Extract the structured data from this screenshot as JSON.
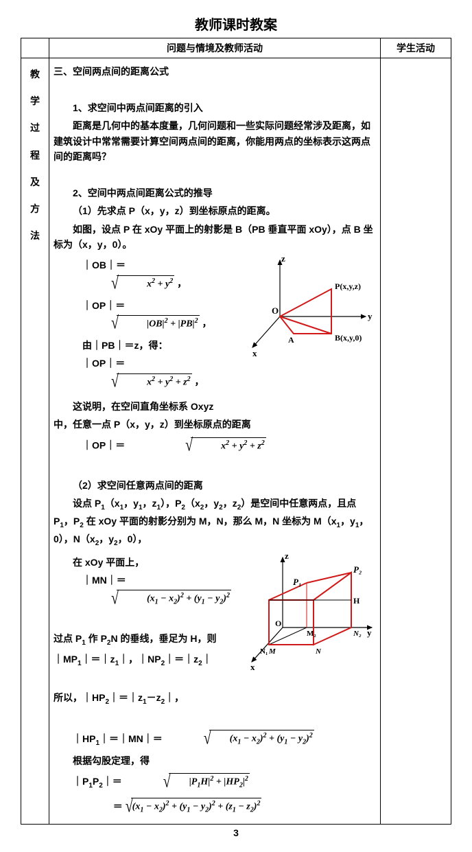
{
  "title": "教师课时教案",
  "header_center": "问题与情境及教师活动",
  "header_right": "学生活动",
  "side_label": "教学过程及方法",
  "page_number": "3",
  "s3_title": "三、空间两点间的距离公式",
  "s3_1_title": "1、求空间中两点间距离的引入",
  "s3_1_body": "距离是几何中的基本度量，几何问题和一些实际问题经常涉及距离，如建筑设计中常常需要计算空间两点间的距离，你能用两点的坐标表示这两点间的距离吗？",
  "s3_2_title": "2、空间中两点间距离公式的推导",
  "s3_2_1": "（1）先求点 P（x，y，z）到坐标原点的距离。",
  "s3_2_1_body": "如图，设点 P 在 xOy 平面上的射影是 B（PB 垂直平面 xOy），点 B 坐标为（x，y，0）。",
  "ob_label": "｜OB｜＝",
  "ob_expr": "x<sup>2</sup> + y<sup>2</sup>",
  "op_label1": "｜OP｜＝",
  "op_expr1": "|OB|<sup>2</sup> + |PB|<sup>2</sup>",
  "pb_line": "由｜PB｜＝z，得：",
  "op_label2": "｜OP｜＝",
  "op_expr2": "x<sup>2</sup> + y<sup>2</sup> + z<sup>2</sup>",
  "explain1a": "这说明，在空间直角坐标系 Oxyz",
  "explain1b": "中，任意一点 P（x，y，z）到坐标原点的距离",
  "op_label3": "｜OP｜＝",
  "op_expr3": "x<sup>2</sup> + y<sup>2</sup> + z<sup>2</sup>",
  "s3_2_2": "（2）求空间任意两点间的距离",
  "s3_2_2_body1": "设点 P<sub>1</sub>（x<sub>1</sub>，y<sub>1</sub>，z<sub>1</sub>），P<sub>2</sub>（x<sub>2</sub>，y<sub>2</sub>，z<sub>2</sub>）是空间中任意两点，且点 P<sub>1</sub>，P<sub>2</sub> 在 xOy 平面的射影分别为 M，N，那么 M，N 坐标为 M（x<sub>1</sub>，y<sub>1</sub>，0），N（x<sub>2</sub>，y<sub>2</sub>，0），",
  "s3_2_2_body2": "在 xOy 平面上，",
  "mn_label": "｜MN｜＝",
  "mn_expr": "(x<sub>1</sub> − x<sub>2</sub>)<sup>2</sup> + (y<sub>1</sub> − y<sub>2</sub>)<sup>2</sup>",
  "perp_line1": "过点 P<sub>1</sub> 作 P<sub>2</sub>N 的垂线，垂足为 H，则",
  "perp_line2": "｜MP<sub>1</sub>｜＝｜z<sub>1</sub>｜，｜NP<sub>2</sub>｜＝｜z<sub>2</sub>｜",
  "so_line": "所以，｜HP<sub>2</sub>｜＝｜z<sub>1</sub>－z<sub>2</sub>｜，",
  "hp1_label": "｜HP<sub>1</sub>｜＝｜MN｜＝",
  "hp1_expr": "(x<sub>1</sub> − x<sub>2</sub>)<sup>2</sup> + (y<sub>1</sub> − y<sub>2</sub>)<sup>2</sup>",
  "pyth": "根据勾股定理，得",
  "p1p2_label": "｜P<sub>1</sub>P<sub>2</sub>｜＝",
  "p1p2_expr1": "|P<sub>1</sub>H|<sup>2</sup> + |HP<sub>2</sub>|<sup>2</sup>",
  "eq_sym": "＝",
  "p1p2_expr2": "(x<sub>1</sub> − x<sub>2</sub>)<sup>2</sup> + (y<sub>1</sub> − y<sub>2</sub>)<sup>2</sup> + (z<sub>1</sub> − z<sub>2</sub>)<sup>2</sup>",
  "fig1": {
    "axes_color": "#000000",
    "line_color": "#d21919",
    "labels": {
      "z": "z",
      "y": "y",
      "x": "x",
      "O": "O",
      "A": "A",
      "P": "P(x,y,z)",
      "B": "B(x,y,0)"
    }
  },
  "fig2": {
    "axes_color": "#000000",
    "line_color": "#d21919",
    "labels": {
      "z": "z",
      "y": "y",
      "x": "x",
      "O": "O",
      "P1": "P₁",
      "P2": "P₂",
      "H": "H",
      "M": "M",
      "N": "N",
      "N1": "N₁",
      "N2": "N₂",
      "M2": "M₂"
    }
  }
}
